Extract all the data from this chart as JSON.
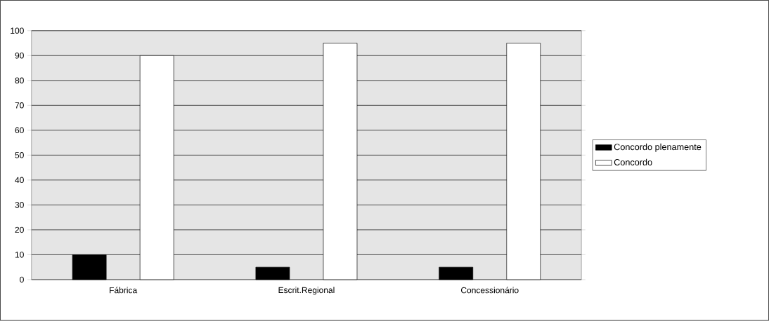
{
  "chart_data": {
    "type": "bar",
    "categories": [
      "Fábrica",
      "Escrit.Regional",
      "Concessionário"
    ],
    "series": [
      {
        "name": "Concordo plenamente",
        "color": "#000000",
        "values": [
          10,
          5,
          5
        ]
      },
      {
        "name": "Concordo",
        "color": "#ffffff",
        "values": [
          90,
          95,
          95
        ]
      }
    ],
    "ylim": [
      0,
      100
    ],
    "yticks": [
      0,
      10,
      20,
      30,
      40,
      50,
      60,
      70,
      80,
      90,
      100
    ],
    "grid": "y",
    "legend": "right"
  }
}
